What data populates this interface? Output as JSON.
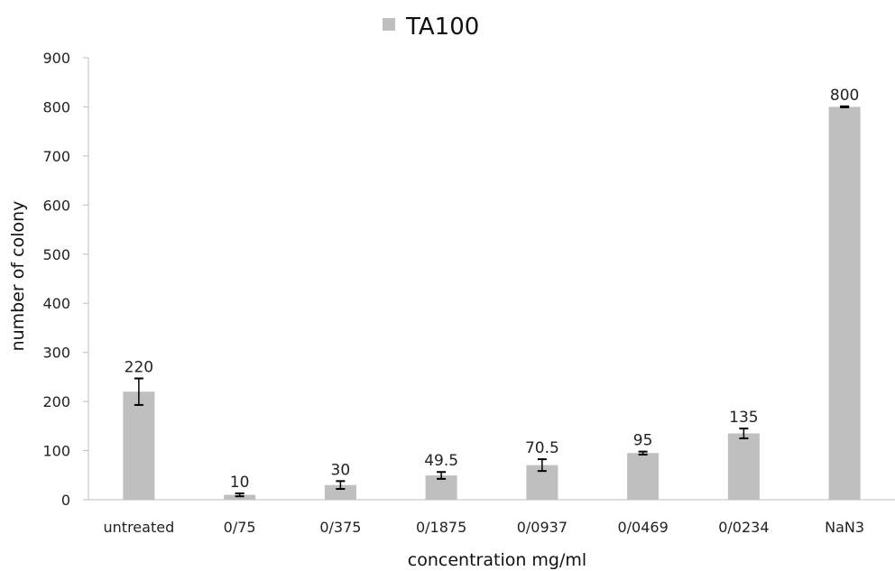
{
  "chart_data": {
    "type": "bar",
    "categories": [
      "untreated",
      "0/75",
      "0/375",
      "0/1875",
      "0/0937",
      "0/0469",
      "0/0234",
      "NaN3"
    ],
    "series": [
      {
        "name": "TA100",
        "values": [
          220,
          10,
          30,
          49.5,
          70.5,
          95,
          135,
          800
        ],
        "errors": [
          27,
          3,
          8,
          7,
          12,
          3,
          10,
          1
        ],
        "data_labels": [
          "220",
          "10",
          "30",
          "49.5",
          "70.5",
          "95",
          "135",
          "800"
        ],
        "color": "#bfbfbf"
      }
    ],
    "xlabel": "concentration mg/ml",
    "ylabel": "number of colony",
    "ylim": [
      0,
      900
    ],
    "yticks": [
      0,
      100,
      200,
      300,
      400,
      500,
      600,
      700,
      800,
      900
    ],
    "grid": false,
    "legend": "top-center"
  }
}
